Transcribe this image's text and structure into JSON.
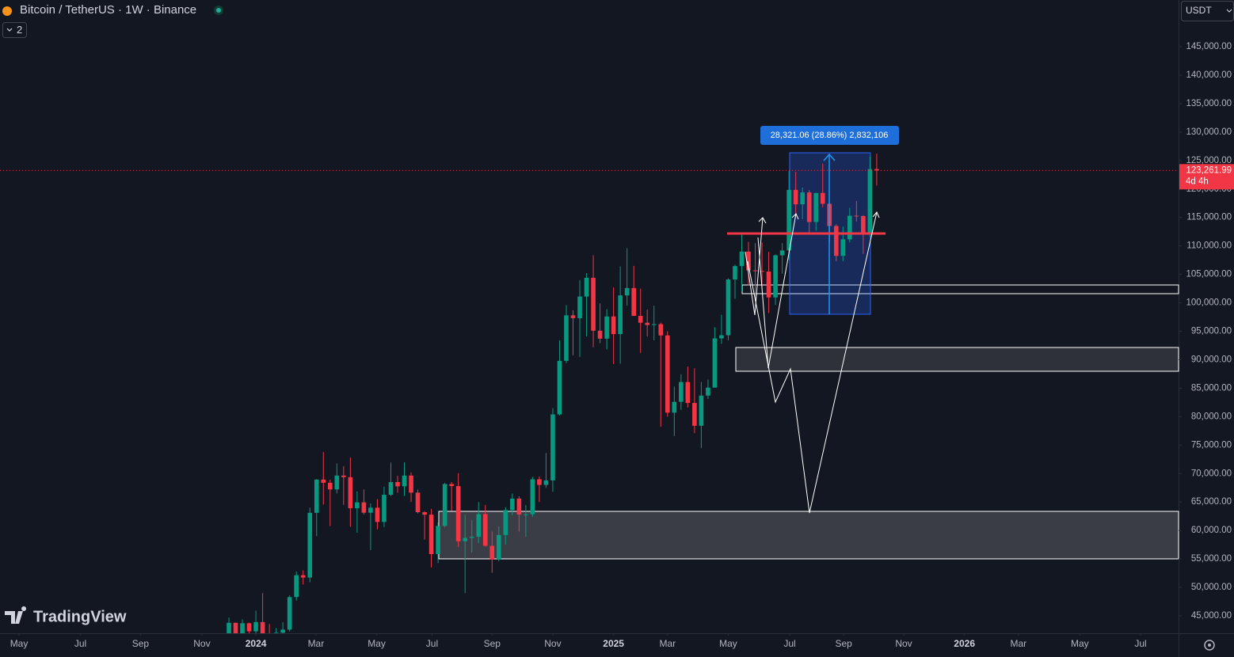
{
  "header": {
    "symbol": "Bitcoin / TetherUS · 1W · Binance",
    "indicators": "2",
    "currency": "USDT"
  },
  "watermark": "TradingView",
  "chart_data": {
    "type": "candlestick",
    "categories": [
      null,
      null,
      null,
      null,
      null,
      null,
      null,
      null,
      null,
      null,
      null,
      null,
      null,
      null,
      null,
      null,
      null,
      null,
      null,
      null,
      null,
      null,
      null,
      null,
      null,
      null,
      null,
      null,
      null,
      null,
      null,
      null,
      null,
      null,
      null,
      null,
      null,
      null,
      null,
      null,
      null,
      null,
      null,
      null,
      null,
      null,
      null,
      null,
      null,
      null,
      null,
      null,
      null,
      null,
      null,
      null,
      null,
      null,
      null,
      null,
      null,
      null,
      null,
      null,
      null,
      null,
      null,
      null,
      null,
      null,
      null,
      null,
      null,
      null,
      null,
      null,
      null,
      null,
      null,
      null,
      null,
      null,
      null,
      null,
      null,
      null,
      null,
      null,
      null,
      null,
      null,
      null,
      null,
      null,
      null,
      null,
      null
    ],
    "open": [
      39970,
      43780,
      41370,
      43700,
      42280,
      43900,
      41730,
      41580,
      42030,
      42580,
      48300,
      52140,
      51730,
      63100,
      68950,
      68380,
      67210,
      69650,
      69360,
      63900,
      64940,
      63120,
      64000,
      61500,
      66270,
      68500,
      67760,
      69650,
      66650,
      63210,
      62770,
      55850,
      60800,
      68160,
      67800,
      58100,
      58700,
      58900,
      62880,
      57300,
      54870,
      59200,
      63580,
      65600,
      62800,
      62850,
      69000,
      68000,
      68800,
      80400,
      89800,
      97800,
      97300,
      101100,
      104400,
      95100,
      93700,
      97600,
      94500,
      101300,
      102600,
      97700,
      96500,
      96100,
      96250,
      94270,
      80700,
      82600,
      86080,
      82400,
      78400,
      83700,
      85100,
      93750,
      94300,
      104100,
      106450,
      109000,
      105700,
      105600,
      105500,
      100950,
      108350,
      109200,
      119850,
      117300,
      119400,
      114200,
      119300,
      117400,
      113500,
      108250,
      111150,
      115300,
      115250,
      112100,
      123500
    ],
    "high": [
      44700,
      43800,
      44400,
      43800,
      45900,
      49000,
      43580,
      42850,
      43880,
      48600,
      52800,
      52980,
      64000,
      69000,
      73780,
      68920,
      71770,
      71300,
      72800,
      66870,
      67200,
      64750,
      65500,
      67700,
      71950,
      69600,
      71950,
      70200,
      67200,
      63370,
      63800,
      61400,
      68380,
      68500,
      70080,
      62750,
      61800,
      65000,
      64500,
      59800,
      60700,
      64100,
      66500,
      66000,
      64480,
      69400,
      69500,
      73600,
      81500,
      93400,
      99600,
      98700,
      104000,
      105200,
      108350,
      99900,
      98900,
      102700,
      106400,
      109600,
      106500,
      102500,
      98800,
      99500,
      96500,
      95000,
      85300,
      87450,
      88800,
      88500,
      86100,
      86500,
      95700,
      97900,
      104300,
      106700,
      111980,
      110700,
      110500,
      110600,
      108950,
      108500,
      110500,
      123200,
      123000,
      120250,
      119800,
      119300,
      124450,
      117600,
      113800,
      113400,
      116700,
      117900,
      115400,
      125700,
      126200
    ],
    "low": [
      39600,
      40500,
      40550,
      41450,
      40750,
      41500,
      40280,
      38550,
      41800,
      42250,
      47700,
      50500,
      50900,
      59000,
      64550,
      60770,
      66500,
      64500,
      60660,
      59600,
      62800,
      56550,
      60200,
      60600,
      66060,
      66620,
      66060,
      65010,
      63000,
      58400,
      53500,
      54260,
      60600,
      63450,
      57100,
      49000,
      56100,
      57800,
      57200,
      52550,
      54600,
      57500,
      62700,
      59800,
      58900,
      62400,
      65000,
      67500,
      66800,
      80200,
      89400,
      90800,
      90500,
      94100,
      92200,
      92900,
      91800,
      89250,
      89300,
      99500,
      97700,
      91200,
      94100,
      93400,
      78200,
      80000,
      76600,
      81200,
      81600,
      77100,
      74500,
      83100,
      85100,
      92800,
      93400,
      100700,
      102000,
      103100,
      100400,
      102600,
      98200,
      99600,
      105100,
      107500,
      115700,
      114700,
      112000,
      112650,
      116800,
      110600,
      107300,
      107300,
      110600,
      114300,
      108600,
      111600,
      120600
    ],
    "close": [
      43780,
      41370,
      43700,
      42280,
      43900,
      41730,
      41580,
      42030,
      42580,
      48300,
      52140,
      51730,
      63100,
      68950,
      68380,
      67210,
      69650,
      69360,
      63900,
      64940,
      63120,
      64000,
      61500,
      66270,
      68500,
      67760,
      69650,
      66650,
      63210,
      62770,
      55850,
      60800,
      68160,
      67800,
      58100,
      58700,
      58900,
      62880,
      57300,
      54870,
      59200,
      63580,
      65600,
      62800,
      62850,
      69000,
      68000,
      68800,
      80400,
      89800,
      97800,
      97300,
      101100,
      104400,
      95100,
      93700,
      97600,
      94500,
      101300,
      102600,
      97700,
      96500,
      96100,
      96250,
      94270,
      80700,
      82600,
      86080,
      82400,
      78400,
      83700,
      85100,
      93750,
      94300,
      104100,
      106450,
      109000,
      105700,
      105600,
      105500,
      100950,
      108350,
      109200,
      119850,
      117300,
      119400,
      114200,
      119300,
      117400,
      113500,
      108250,
      111150,
      115300,
      115250,
      112100,
      123500,
      123261.99
    ],
    "up_color": "#089981",
    "down_color": "#f23645",
    "xlim": [
      -33.92,
      140.73
    ],
    "xticks": [
      {
        "value": -31.1,
        "label": "May"
      },
      {
        "value": -22.0,
        "label": "Jul"
      },
      {
        "value": -13.1,
        "label": "Sep"
      },
      {
        "value": -4.0,
        "label": "Nov"
      },
      {
        "value": 4.0,
        "label": "2024"
      },
      {
        "value": 12.9,
        "label": "Mar"
      },
      {
        "value": 21.9,
        "label": "May"
      },
      {
        "value": 30.1,
        "label": "Jul"
      },
      {
        "value": 39.0,
        "label": "Sep"
      },
      {
        "value": 48.0,
        "label": "Nov"
      },
      {
        "value": 57.0,
        "label": "2025"
      },
      {
        "value": 65.0,
        "label": "Mar"
      },
      {
        "value": 74.0,
        "label": "May"
      },
      {
        "value": 83.1,
        "label": "Jul"
      },
      {
        "value": 91.1,
        "label": "Sep"
      },
      {
        "value": 100.0,
        "label": "Nov"
      },
      {
        "value": 109.0,
        "label": "2026"
      },
      {
        "value": 117.0,
        "label": "Mar"
      },
      {
        "value": 126.1,
        "label": "May"
      },
      {
        "value": 135.1,
        "label": "Jul"
      }
    ],
    "ylim": [
      41940,
      153206
    ],
    "yticks": [
      {
        "value": 45000,
        "label": "45,000.00"
      },
      {
        "value": 50000,
        "label": "50,000.00"
      },
      {
        "value": 55000,
        "label": "55,000.00"
      },
      {
        "value": 60000,
        "label": "60,000.00"
      },
      {
        "value": 65000,
        "label": "65,000.00"
      },
      {
        "value": 70000,
        "label": "70,000.00"
      },
      {
        "value": 75000,
        "label": "75,000.00"
      },
      {
        "value": 80000,
        "label": "80,000.00"
      },
      {
        "value": 85000,
        "label": "85,000.00"
      },
      {
        "value": 90000,
        "label": "90,000.00"
      },
      {
        "value": 95000,
        "label": "95,000.00"
      },
      {
        "value": 100000,
        "label": "100,000.00"
      },
      {
        "value": 105000,
        "label": "105,000.00"
      },
      {
        "value": 110000,
        "label": "110,000.00"
      },
      {
        "value": 115000,
        "label": "115,000.00"
      },
      {
        "value": 120000,
        "label": "120,000.00"
      },
      {
        "value": 125000,
        "label": "125,000.00"
      },
      {
        "value": 130000,
        "label": "130,000.00"
      },
      {
        "value": 135000,
        "label": "135,000.00"
      },
      {
        "value": 140000,
        "label": "140,000.00"
      },
      {
        "value": 145000,
        "label": "145,000.00"
      }
    ],
    "grid": false,
    "price_line": {
      "value": 123261.99,
      "label": "123,261.99",
      "countdown": "4d 4h"
    },
    "measure_label": "28,321.06 (28.86%) 2,832,106"
  }
}
